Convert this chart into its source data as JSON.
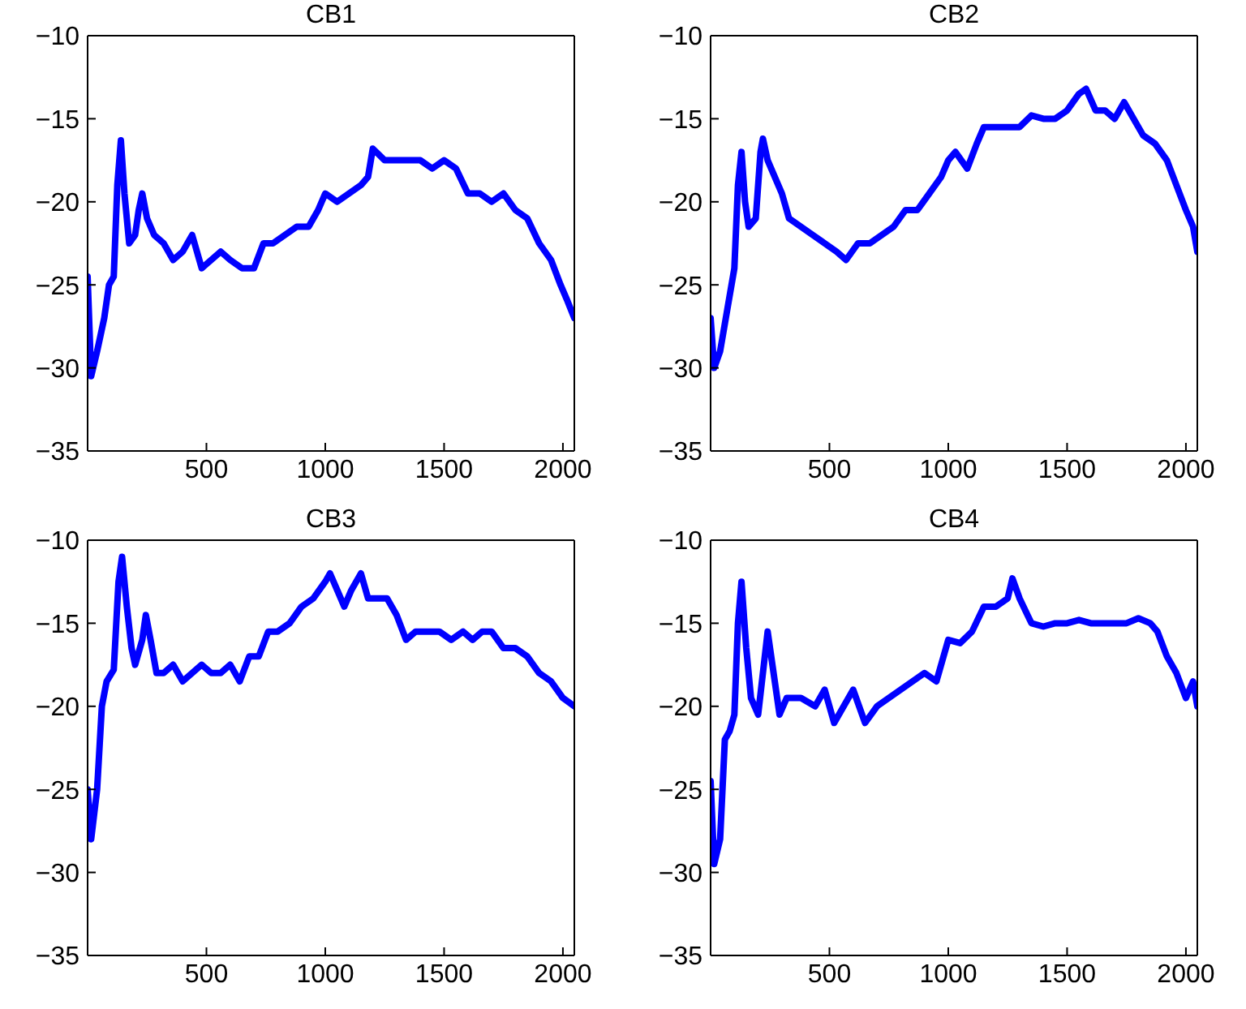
{
  "chart_data": [
    {
      "type": "line",
      "title": "CB1",
      "xlim": [
        0,
        2048
      ],
      "xticks": [
        500,
        1000,
        1500,
        2000
      ],
      "ylim": [
        -35,
        -10
      ],
      "yticks": [
        -35,
        -30,
        -25,
        -20,
        -15,
        -10
      ],
      "marker": "none",
      "line_style": "solid",
      "x": [
        0,
        15,
        40,
        70,
        90,
        110,
        125,
        140,
        155,
        175,
        200,
        215,
        230,
        250,
        280,
        320,
        360,
        400,
        440,
        480,
        520,
        560,
        600,
        650,
        700,
        740,
        780,
        830,
        880,
        930,
        970,
        1000,
        1050,
        1100,
        1150,
        1180,
        1200,
        1250,
        1300,
        1350,
        1400,
        1450,
        1500,
        1550,
        1600,
        1650,
        1700,
        1750,
        1800,
        1850,
        1900,
        1950,
        1990,
        2020,
        2048
      ],
      "series": [
        {
          "color": "#0000ff",
          "values": [
            -24.5,
            -30.5,
            -29,
            -27,
            -25,
            -24.5,
            -19,
            -16.3,
            -19.5,
            -22.5,
            -22,
            -20.5,
            -19.5,
            -21,
            -22,
            -22.5,
            -23.5,
            -23,
            -22,
            -24,
            -23.5,
            -23,
            -23.5,
            -24,
            -24,
            -22.5,
            -22.5,
            -22,
            -21.5,
            -21.5,
            -20.5,
            -19.5,
            -20,
            -19.5,
            -19,
            -18.5,
            -16.8,
            -17.5,
            -17.5,
            -17.5,
            -17.5,
            -18,
            -17.5,
            -18,
            -19.5,
            -19.5,
            -20,
            -19.5,
            -20.5,
            -21,
            -22.5,
            -23.5,
            -25,
            -26,
            -27
          ]
        }
      ]
    },
    {
      "type": "line",
      "title": "CB2",
      "xlim": [
        0,
        2048
      ],
      "xticks": [
        500,
        1000,
        1500,
        2000
      ],
      "ylim": [
        -35,
        -10
      ],
      "yticks": [
        -35,
        -30,
        -25,
        -20,
        -15,
        -10
      ],
      "marker": "none",
      "line_style": "solid",
      "x": [
        0,
        15,
        40,
        70,
        100,
        115,
        130,
        145,
        160,
        190,
        210,
        220,
        240,
        270,
        300,
        330,
        380,
        430,
        480,
        530,
        570,
        620,
        670,
        720,
        770,
        820,
        870,
        920,
        970,
        1000,
        1030,
        1080,
        1120,
        1150,
        1200,
        1250,
        1300,
        1350,
        1400,
        1450,
        1500,
        1550,
        1580,
        1620,
        1660,
        1700,
        1740,
        1780,
        1820,
        1870,
        1920,
        1960,
        2000,
        2030,
        2048
      ],
      "series": [
        {
          "color": "#0000ff",
          "values": [
            -27,
            -30,
            -29,
            -26.5,
            -24,
            -19,
            -17,
            -20,
            -21.5,
            -21,
            -17,
            -16.2,
            -17.5,
            -18.5,
            -19.5,
            -21,
            -21.5,
            -22,
            -22.5,
            -23,
            -23.5,
            -22.5,
            -22.5,
            -22,
            -21.5,
            -20.5,
            -20.5,
            -19.5,
            -18.5,
            -17.5,
            -17,
            -18,
            -16.5,
            -15.5,
            -15.5,
            -15.5,
            -15.5,
            -14.8,
            -15,
            -15,
            -14.5,
            -13.5,
            -13.2,
            -14.5,
            -14.5,
            -15,
            -14,
            -15,
            -16,
            -16.5,
            -17.5,
            -19,
            -20.5,
            -21.5,
            -23
          ]
        }
      ]
    },
    {
      "type": "line",
      "title": "CB3",
      "xlim": [
        0,
        2048
      ],
      "xticks": [
        500,
        1000,
        1500,
        2000
      ],
      "ylim": [
        -35,
        -10
      ],
      "yticks": [
        -35,
        -30,
        -25,
        -20,
        -15,
        -10
      ],
      "marker": "none",
      "line_style": "solid",
      "x": [
        0,
        15,
        40,
        60,
        80,
        110,
        130,
        145,
        165,
        185,
        200,
        230,
        245,
        265,
        290,
        320,
        360,
        400,
        440,
        480,
        520,
        560,
        600,
        640,
        680,
        720,
        760,
        800,
        850,
        900,
        950,
        1000,
        1020,
        1050,
        1080,
        1110,
        1150,
        1180,
        1220,
        1260,
        1300,
        1340,
        1380,
        1430,
        1480,
        1530,
        1580,
        1620,
        1660,
        1700,
        1750,
        1800,
        1850,
        1900,
        1950,
        2000,
        2048
      ],
      "series": [
        {
          "color": "#0000ff",
          "values": [
            -25,
            -28,
            -25,
            -20,
            -18.5,
            -17.8,
            -12.5,
            -11,
            -14,
            -16.5,
            -17.5,
            -16,
            -14.5,
            -16,
            -18,
            -18,
            -17.5,
            -18.5,
            -18,
            -17.5,
            -18,
            -18,
            -17.5,
            -18.5,
            -17,
            -17,
            -15.5,
            -15.5,
            -15,
            -14,
            -13.5,
            -12.5,
            -12,
            -13,
            -14,
            -13,
            -12,
            -13.5,
            -13.5,
            -13.5,
            -14.5,
            -16,
            -15.5,
            -15.5,
            -15.5,
            -16,
            -15.5,
            -16,
            -15.5,
            -15.5,
            -16.5,
            -16.5,
            -17,
            -18,
            -18.5,
            -19.5,
            -20
          ]
        }
      ]
    },
    {
      "type": "line",
      "title": "CB4",
      "xlim": [
        0,
        2048
      ],
      "xticks": [
        500,
        1000,
        1500,
        2000
      ],
      "ylim": [
        -35,
        -10
      ],
      "yticks": [
        -35,
        -30,
        -25,
        -20,
        -15,
        -10
      ],
      "marker": "none",
      "line_style": "solid",
      "x": [
        0,
        15,
        40,
        60,
        80,
        100,
        115,
        130,
        150,
        170,
        200,
        220,
        240,
        260,
        290,
        320,
        380,
        440,
        480,
        520,
        560,
        600,
        650,
        700,
        750,
        800,
        850,
        900,
        950,
        1000,
        1050,
        1100,
        1150,
        1200,
        1250,
        1270,
        1300,
        1350,
        1400,
        1450,
        1500,
        1550,
        1600,
        1650,
        1700,
        1750,
        1800,
        1850,
        1880,
        1920,
        1960,
        2000,
        2030,
        2048
      ],
      "series": [
        {
          "color": "#0000ff",
          "values": [
            -24.5,
            -29.5,
            -28,
            -22,
            -21.5,
            -20.5,
            -15,
            -12.5,
            -16.5,
            -19.5,
            -20.5,
            -18,
            -15.5,
            -17.5,
            -20.5,
            -19.5,
            -19.5,
            -20,
            -19,
            -21,
            -20,
            -19,
            -21,
            -20,
            -19.5,
            -19,
            -18.5,
            -18,
            -18.5,
            -16,
            -16.2,
            -15.5,
            -14,
            -14,
            -13.5,
            -12.3,
            -13.5,
            -15,
            -15.2,
            -15,
            -15,
            -14.8,
            -15,
            -15,
            -15,
            -15,
            -14.7,
            -15,
            -15.5,
            -17,
            -18,
            -19.5,
            -18.5,
            -20
          ]
        }
      ]
    }
  ]
}
